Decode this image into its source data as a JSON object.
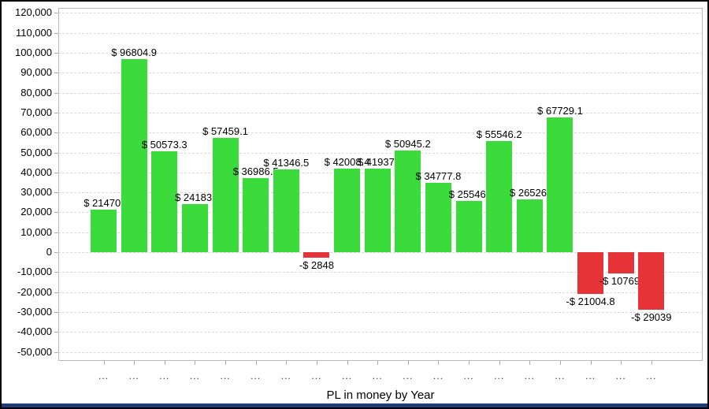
{
  "window": {
    "bottom_strip_color": "#1e3c78"
  },
  "chart_data": {
    "type": "bar",
    "title": "",
    "xlabel": "PL in money by Year",
    "ylabel": "",
    "ylim": [
      -50000,
      120000
    ],
    "y_tick_step": 10000,
    "grid": true,
    "legend": "none",
    "categories": [
      "...",
      "...",
      "...",
      "...",
      "...",
      "...",
      "...",
      "...",
      "...",
      "...",
      "...",
      "...",
      "...",
      "...",
      "...",
      "...",
      "...",
      "...",
      "..."
    ],
    "values": [
      21470,
      96804.9,
      50573.3,
      24183,
      57459.1,
      36986.5,
      41346.5,
      -2848,
      42008.4,
      41937,
      50945.2,
      34777.8,
      25546,
      55546.2,
      26526,
      67729.1,
      -21004.8,
      -10769,
      -29039
    ],
    "bar_labels": [
      "$ 21470.",
      "$ 96804.9",
      "$ 50573.3",
      "$ 24183.",
      "$ 57459.1",
      "$ 36986.5",
      "$ 41346.5",
      "-$ 2848",
      "$ 42008.4",
      "$ 41937.",
      "$ 50945.2",
      "$ 34777.8",
      "$ 25546.",
      "$ 55546.2",
      "$ 26526.",
      "$ 67729.1",
      "-$ 21004.8",
      "-$ 10769.",
      "-$ 29039"
    ],
    "y_tick_labels": [
      "120,000",
      "110,000",
      "100,000",
      "90,000",
      "80,000",
      "70,000",
      "60,000",
      "50,000",
      "40,000",
      "30,000",
      "20,000",
      "10,000",
      "0",
      "-10,000",
      "-20,000",
      "-30,000",
      "-40,000",
      "-50,000"
    ],
    "colors": {
      "positive_bar": "#3cdb3c",
      "negative_bar": "#e53338",
      "gridline": "#d9d9d9",
      "plot_border": "#b8b8b8",
      "label_text": "#000000"
    }
  }
}
